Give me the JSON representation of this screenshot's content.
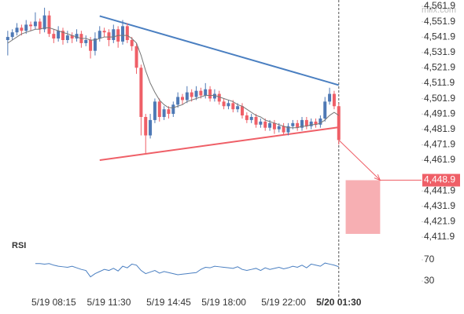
{
  "chart_data": {
    "type": "candlestick",
    "watermark": "mifx.com",
    "up_color": "#4e79b5",
    "down_color": "#ef5f67",
    "ma_color": "#777777",
    "xlim": [
      -1,
      90
    ],
    "xticks": [
      {
        "value": 10,
        "label": "5/19 08:15"
      },
      {
        "value": 22,
        "label": "5/19 11:30"
      },
      {
        "value": 35,
        "label": "5/19 14:45"
      },
      {
        "value": 47,
        "label": "5/19 18:00"
      },
      {
        "value": 60,
        "label": "5/19 22:00"
      },
      {
        "value": 72,
        "label": "5/20 01:30"
      }
    ],
    "ylim": [
      4410.4,
      4565
    ],
    "yticks": [
      {
        "value": 4561.9,
        "label": "4,561.9"
      },
      {
        "value": 4551.9,
        "label": "4,551.9"
      },
      {
        "value": 4541.9,
        "label": "4,541.9"
      },
      {
        "value": 4531.9,
        "label": "4,531.9"
      },
      {
        "value": 4521.9,
        "label": "4,521.9"
      },
      {
        "value": 4511.9,
        "label": "4,511.9"
      },
      {
        "value": 4501.9,
        "label": "4,501.9"
      },
      {
        "value": 4491.9,
        "label": "4,491.9"
      },
      {
        "value": 4481.9,
        "label": "4,481.9"
      },
      {
        "value": 4471.9,
        "label": "4,471.9"
      },
      {
        "value": 4461.9,
        "label": "4,461.9"
      },
      {
        "value": 4441.9,
        "label": "4,441.9"
      },
      {
        "value": 4431.9,
        "label": "4,431.9"
      },
      {
        "value": 4421.9,
        "label": "4,421.9"
      },
      {
        "value": 4411.9,
        "label": "4,411.9"
      }
    ],
    "ohlc": [
      [
        4540,
        4546,
        4530,
        4542
      ],
      [
        4542,
        4547,
        4540,
        4545
      ],
      [
        4545,
        4551,
        4543,
        4548
      ],
      [
        4548,
        4550,
        4543,
        4546
      ],
      [
        4546,
        4553,
        4544,
        4550
      ],
      [
        4550,
        4552,
        4546,
        4549
      ],
      [
        4549,
        4558,
        4547,
        4552
      ],
      [
        4552,
        4554,
        4544,
        4547
      ],
      [
        4547,
        4561,
        4545,
        4556
      ],
      [
        4556,
        4559,
        4542,
        4544
      ],
      [
        4544,
        4547,
        4538,
        4541
      ],
      [
        4541,
        4549,
        4539,
        4546
      ],
      [
        4546,
        4548,
        4537,
        4540
      ],
      [
        4540,
        4546,
        4538,
        4543
      ],
      [
        4543,
        4545,
        4538,
        4541
      ],
      [
        4541,
        4547,
        4539,
        4544
      ],
      [
        4544,
        4546,
        4535,
        4538
      ],
      [
        4538,
        4543,
        4536,
        4540
      ],
      [
        4540,
        4542,
        4528,
        4533
      ],
      [
        4533,
        4545,
        4530,
        4541
      ],
      [
        4541,
        4549,
        4539,
        4546
      ],
      [
        4546,
        4548,
        4542,
        4545
      ],
      [
        4545,
        4547,
        4536,
        4540
      ],
      [
        4540,
        4550,
        4538,
        4547
      ],
      [
        4547,
        4549,
        4535,
        4539
      ],
      [
        4539,
        4553,
        4537,
        4549
      ],
      [
        4549,
        4551,
        4538,
        4540
      ],
      [
        4540,
        4542,
        4533,
        4536
      ],
      [
        4536,
        4538,
        4518,
        4522
      ],
      [
        4522,
        4524,
        4478,
        4490
      ],
      [
        4490,
        4492,
        4466,
        4478
      ],
      [
        4478,
        4492,
        4476,
        4488
      ],
      [
        4488,
        4502,
        4486,
        4500
      ],
      [
        4500,
        4502,
        4487,
        4490
      ],
      [
        4490,
        4497,
        4488,
        4495
      ],
      [
        4495,
        4497,
        4489,
        4492
      ],
      [
        4492,
        4500,
        4490,
        4498
      ],
      [
        4498,
        4506,
        4496,
        4503
      ],
      [
        4503,
        4505,
        4498,
        4501
      ],
      [
        4501,
        4510,
        4499,
        4506
      ],
      [
        4506,
        4508,
        4500,
        4503
      ],
      [
        4503,
        4510,
        4501,
        4507
      ],
      [
        4507,
        4509,
        4502,
        4504
      ],
      [
        4504,
        4512,
        4502,
        4508
      ],
      [
        4508,
        4510,
        4500,
        4502
      ],
      [
        4502,
        4508,
        4500,
        4505
      ],
      [
        4505,
        4507,
        4498,
        4500
      ],
      [
        4500,
        4502,
        4495,
        4497
      ],
      [
        4497,
        4501,
        4495,
        4499
      ],
      [
        4499,
        4501,
        4493,
        4495
      ],
      [
        4495,
        4499,
        4493,
        4497
      ],
      [
        4497,
        4499,
        4489,
        4491
      ],
      [
        4491,
        4493,
        4486,
        4488
      ],
      [
        4488,
        4492,
        4486,
        4490
      ],
      [
        4490,
        4492,
        4483,
        4485
      ],
      [
        4485,
        4489,
        4483,
        4487
      ],
      [
        4487,
        4489,
        4481,
        4483
      ],
      [
        4483,
        4488,
        4481,
        4486
      ],
      [
        4486,
        4488,
        4479,
        4482
      ],
      [
        4482,
        4486,
        4480,
        4484
      ],
      [
        4484,
        4486,
        4478,
        4480
      ],
      [
        4480,
        4486,
        4478,
        4484
      ],
      [
        4484,
        4488,
        4482,
        4486
      ],
      [
        4486,
        4488,
        4481,
        4483
      ],
      [
        4483,
        4490,
        4481,
        4488
      ],
      [
        4488,
        4490,
        4482,
        4484
      ],
      [
        4484,
        4489,
        4482,
        4487
      ],
      [
        4487,
        4489,
        4483,
        4485
      ],
      [
        4485,
        4491,
        4483,
        4489
      ],
      [
        4489,
        4503,
        4487,
        4500
      ],
      [
        4500,
        4509,
        4498,
        4505
      ],
      [
        4505,
        4507,
        4495,
        4497
      ],
      [
        4497,
        4499,
        4472,
        4475
      ]
    ],
    "ma": [
      4538,
      4540,
      4542,
      4544,
      4545,
      4546,
      4547,
      4547,
      4548,
      4548,
      4547,
      4546,
      4545,
      4544,
      4543,
      4542,
      4541,
      4541,
      4540,
      4540,
      4541,
      4542,
      4542,
      4542,
      4543,
      4543,
      4543,
      4541,
      4538,
      4530,
      4520,
      4512,
      4506,
      4501,
      4498,
      4496,
      4496,
      4497,
      4498,
      4500,
      4501,
      4502,
      4503,
      4504,
      4504,
      4504,
      4503,
      4502,
      4501,
      4500,
      4498,
      4497,
      4495,
      4493,
      4491,
      4490,
      4488,
      4487,
      4486,
      4485,
      4484,
      4483,
      4483,
      4483,
      4484,
      4484,
      4485,
      4485,
      4486,
      4488,
      4491,
      4493,
      4491
    ],
    "resistance": {
      "x": [
        20,
        72
      ],
      "y": [
        4555.6,
        4510.7
      ],
      "color": "#4a7fc1"
    },
    "support": {
      "x": [
        20,
        72
      ],
      "y": [
        4461.9,
        4483.3
      ],
      "color": "#ef5f67"
    },
    "projection": {
      "x": [
        73.5,
        81
      ],
      "top": 4448.9,
      "bottom": 4414,
      "value_label": "4,448.9",
      "color": "#ef5f67"
    },
    "rsi": {
      "title": "RSI",
      "color": "#4a7fc1",
      "ylim": [
        0,
        105
      ],
      "yticks": [
        70,
        30
      ],
      "values": [
        null,
        null,
        null,
        null,
        null,
        null,
        63,
        63,
        62,
        63,
        60,
        58,
        57,
        56,
        58,
        55,
        52,
        50,
        38,
        44,
        48,
        52,
        50,
        54,
        49,
        58,
        55,
        62,
        60,
        50,
        44,
        47,
        50,
        45,
        48,
        46,
        44,
        42,
        43,
        44,
        45,
        46,
        52,
        56,
        55,
        58,
        57,
        56,
        55,
        54,
        57,
        52,
        50,
        52,
        54,
        50,
        55,
        52,
        54,
        56,
        53,
        55,
        58,
        56,
        60,
        55,
        62,
        60,
        58,
        64,
        62,
        60,
        57
      ]
    }
  }
}
